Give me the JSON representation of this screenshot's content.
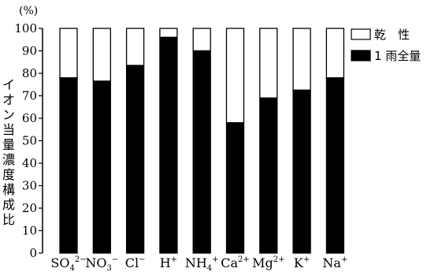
{
  "chart_data": {
    "type": "bar",
    "stacked": true,
    "unit": "(%)",
    "ylabel": "イオン当量濃度構成比",
    "ylim": [
      0,
      100
    ],
    "yticks": [
      0,
      10,
      20,
      30,
      40,
      50,
      60,
      70,
      80,
      90,
      100
    ],
    "categories": [
      {
        "base": "SO",
        "sub": "4",
        "sup": "2−"
      },
      {
        "base": "NO",
        "sub": "3",
        "sup": "−"
      },
      {
        "base": "Cl",
        "sub": "",
        "sup": "−"
      },
      {
        "base": "H",
        "sub": "",
        "sup": "+"
      },
      {
        "base": "NH",
        "sub": "4",
        "sup": "+"
      },
      {
        "base": "Ca",
        "sub": "",
        "sup": "2+"
      },
      {
        "base": "Mg",
        "sub": "",
        "sup": "2+"
      },
      {
        "base": "K",
        "sub": "",
        "sup": "+"
      },
      {
        "base": "Na",
        "sub": "",
        "sup": "+"
      }
    ],
    "series": [
      {
        "name": "1 雨全量",
        "color": "#000000",
        "values": [
          78,
          76.5,
          83.5,
          96,
          90,
          58,
          69,
          72.5,
          78
        ]
      },
      {
        "name": "乾　性",
        "color": "#ffffff",
        "values": [
          22,
          23.5,
          16.5,
          4,
          10,
          42,
          31,
          27.5,
          22
        ]
      }
    ],
    "legend": {
      "position": "right",
      "order": [
        "乾　性",
        "1 雨全量"
      ]
    }
  }
}
